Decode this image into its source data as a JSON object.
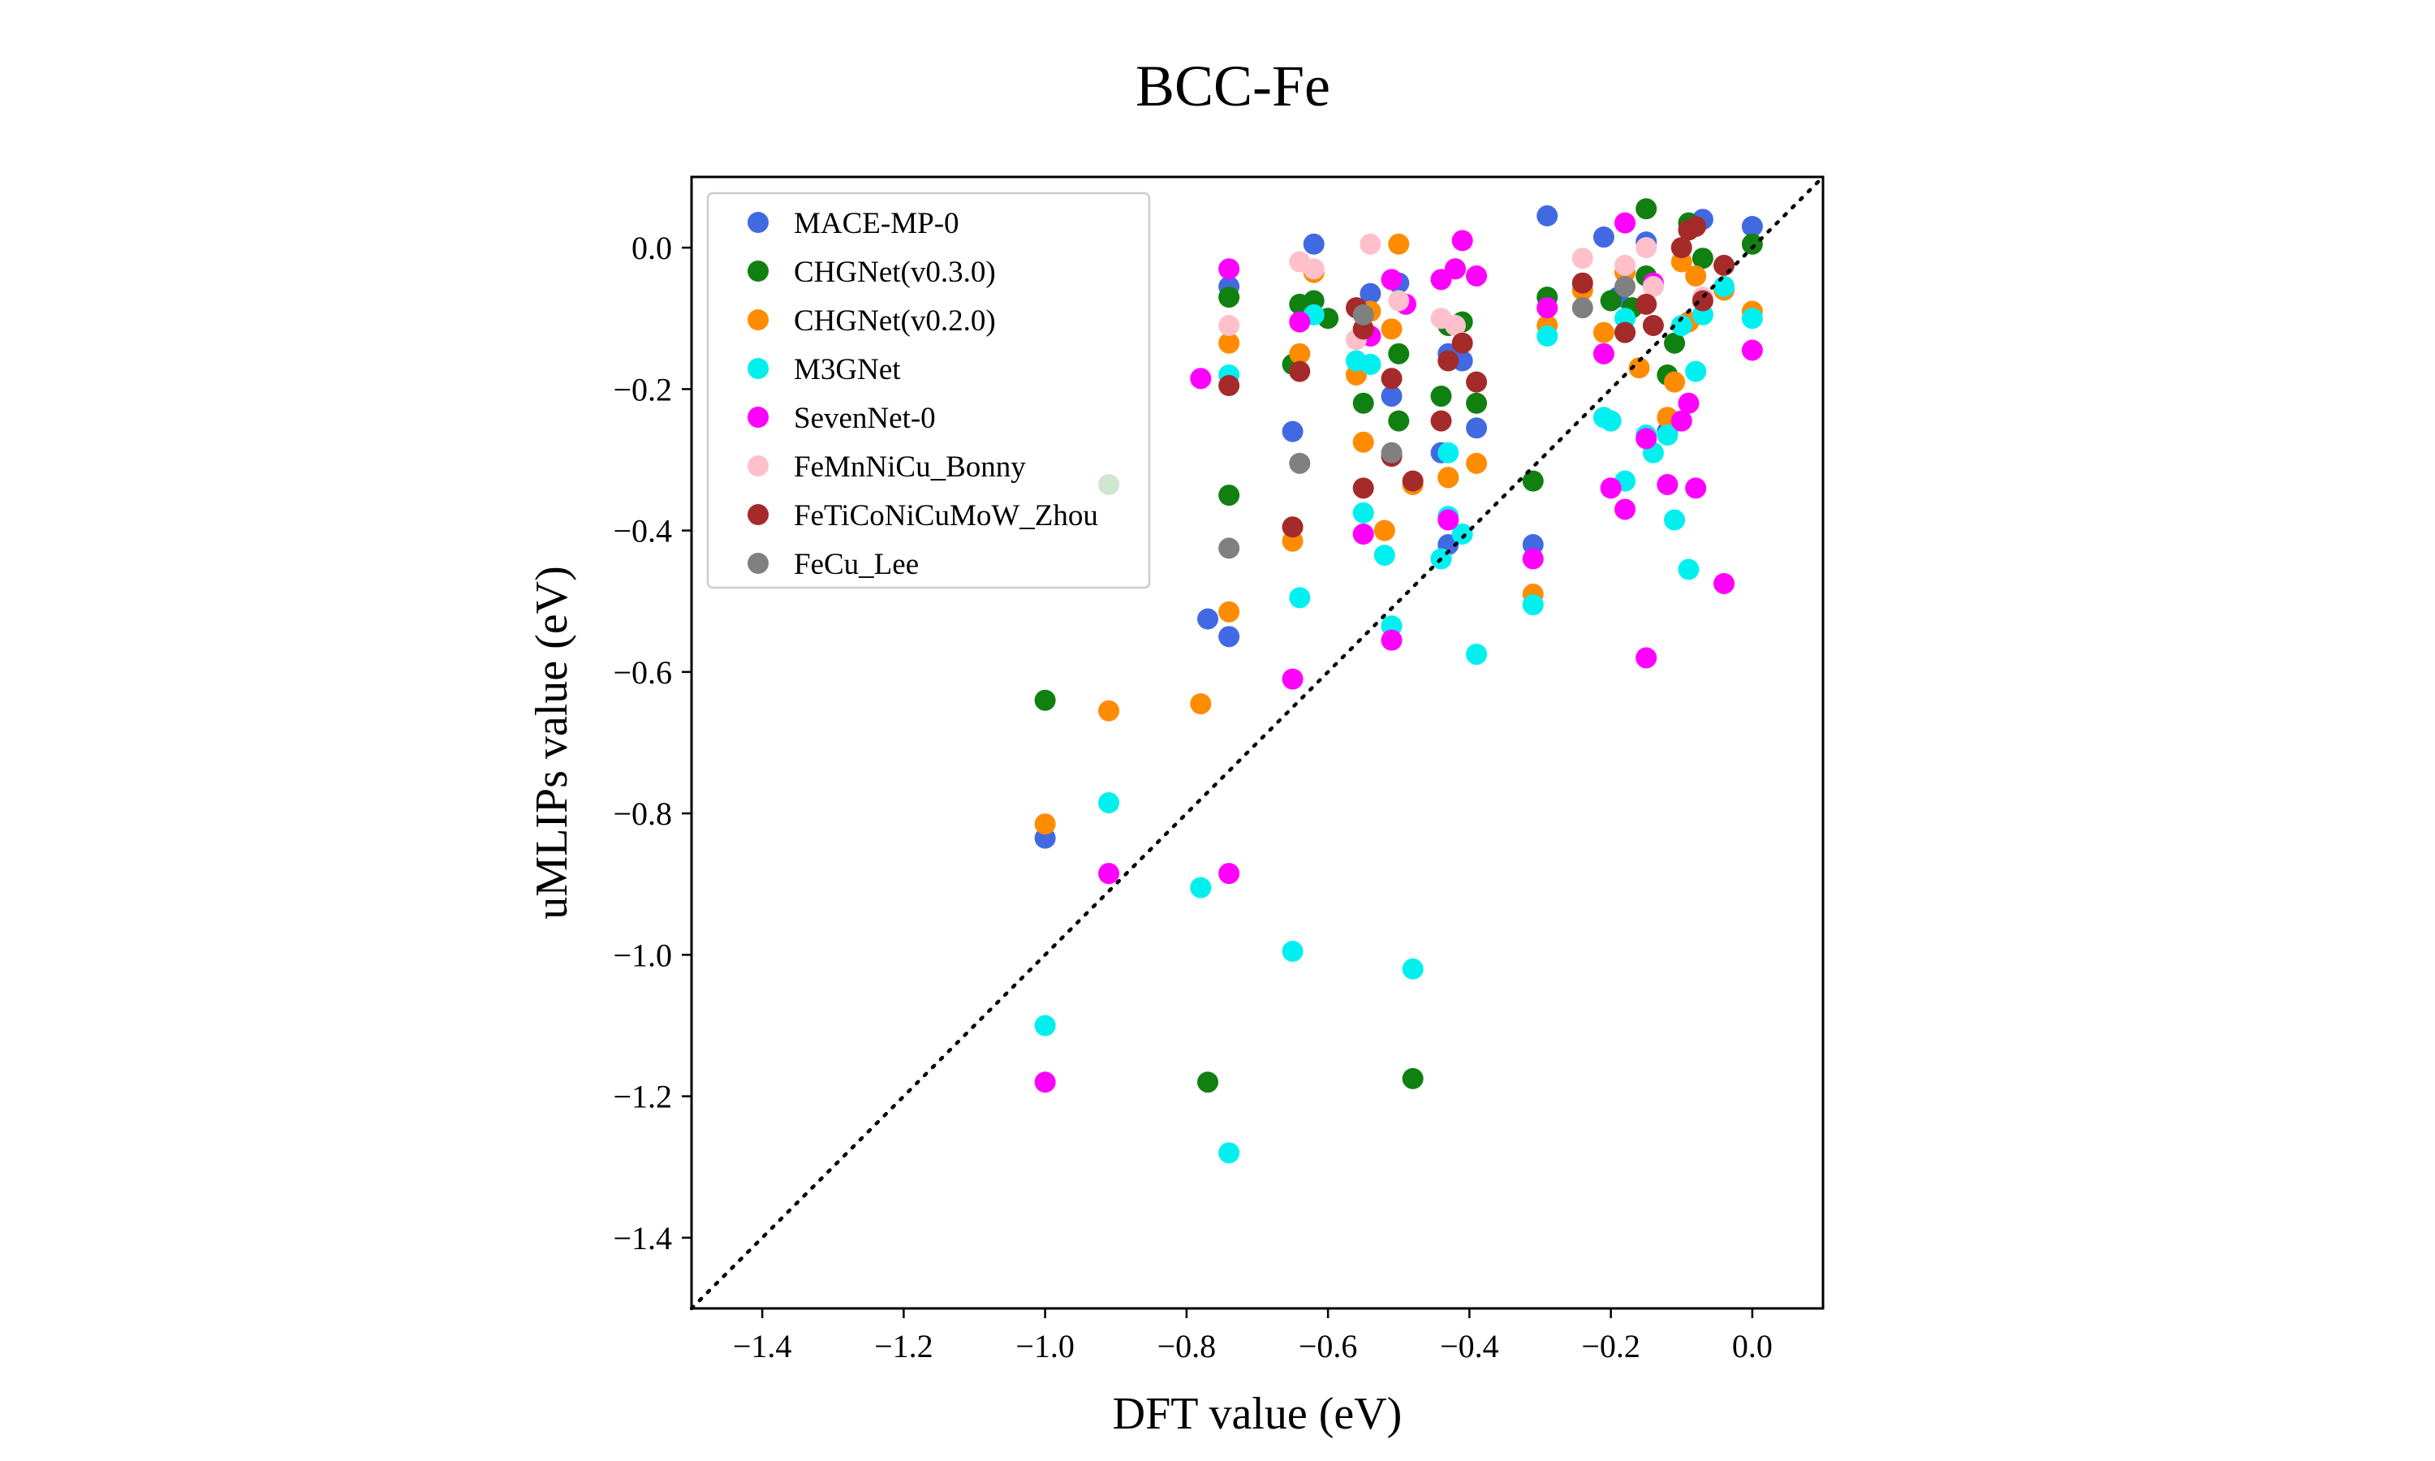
{
  "chart_data": {
    "type": "scatter",
    "title": "BCC-Fe",
    "xlabel": "DFT value (eV)",
    "ylabel": "uMLIPs value (eV)",
    "xlim": [
      -1.5,
      0.1
    ],
    "ylim": [
      -1.5,
      0.1
    ],
    "xticks": [
      -1.4,
      -1.2,
      -1.0,
      -0.8,
      -0.6,
      -0.4,
      -0.2,
      0.0
    ],
    "yticks": [
      0.0,
      -0.2,
      -0.4,
      -0.6,
      -0.8,
      -1.0,
      -1.2,
      -1.4
    ],
    "xtick_labels": [
      "−1.4",
      "−1.2",
      "−1.0",
      "−0.8",
      "−0.6",
      "−0.4",
      "−0.2",
      "0.0"
    ],
    "ytick_labels": [
      "0.0",
      "−0.2",
      "−0.4",
      "−0.6",
      "−0.8",
      "−1.0",
      "−1.2",
      "−1.4"
    ],
    "reference_line": "y = x, dotted black",
    "grid": false,
    "legend_position": "top-left",
    "series": [
      {
        "name": "MACE-MP-0",
        "color": "#4169e1",
        "points": [
          [
            -1.0,
            -0.835
          ],
          [
            -0.77,
            -0.525
          ],
          [
            -0.74,
            -0.055
          ],
          [
            -0.74,
            -0.55
          ],
          [
            -0.65,
            -0.26
          ],
          [
            -0.62,
            0.005
          ],
          [
            -0.54,
            -0.065
          ],
          [
            -0.51,
            -0.21
          ],
          [
            -0.5,
            -0.05
          ],
          [
            -0.44,
            -0.29
          ],
          [
            -0.43,
            -0.15
          ],
          [
            -0.43,
            -0.42
          ],
          [
            -0.41,
            -0.16
          ],
          [
            -0.39,
            -0.255
          ],
          [
            -0.31,
            -0.42
          ],
          [
            -0.29,
            0.045
          ],
          [
            -0.21,
            0.015
          ],
          [
            -0.19,
            -0.07
          ],
          [
            -0.18,
            -0.12
          ],
          [
            -0.15,
            0.008
          ],
          [
            -0.12,
            -0.26
          ],
          [
            -0.07,
            0.04
          ],
          [
            0.0,
            0.03
          ]
        ]
      },
      {
        "name": "CHGNet(v0.3.0)",
        "color": "#108010",
        "points": [
          [
            -1.0,
            -0.64
          ],
          [
            -0.91,
            -0.335
          ],
          [
            -0.77,
            -1.18
          ],
          [
            -0.74,
            -0.07
          ],
          [
            -0.74,
            -0.35
          ],
          [
            -0.65,
            -0.165
          ],
          [
            -0.64,
            -0.08
          ],
          [
            -0.62,
            -0.075
          ],
          [
            -0.6,
            -0.1
          ],
          [
            -0.55,
            -0.22
          ],
          [
            -0.5,
            -0.245
          ],
          [
            -0.5,
            -0.15
          ],
          [
            -0.48,
            -1.175
          ],
          [
            -0.44,
            -0.21
          ],
          [
            -0.43,
            -0.325
          ],
          [
            -0.43,
            -0.11
          ],
          [
            -0.41,
            -0.105
          ],
          [
            -0.39,
            -0.22
          ],
          [
            -0.31,
            -0.33
          ],
          [
            -0.29,
            -0.07
          ],
          [
            -0.2,
            -0.075
          ],
          [
            -0.17,
            -0.085
          ],
          [
            -0.15,
            0.055
          ],
          [
            -0.15,
            -0.04
          ],
          [
            -0.12,
            -0.18
          ],
          [
            -0.11,
            -0.135
          ],
          [
            -0.09,
            0.035
          ],
          [
            -0.07,
            -0.015
          ],
          [
            0.0,
            0.005
          ]
        ]
      },
      {
        "name": "CHGNet(v0.2.0)",
        "color": "#ff8c00",
        "points": [
          [
            -1.0,
            -0.815
          ],
          [
            -0.91,
            -0.655
          ],
          [
            -0.78,
            -0.645
          ],
          [
            -0.74,
            -0.515
          ],
          [
            -0.74,
            -0.135
          ],
          [
            -0.65,
            -0.415
          ],
          [
            -0.64,
            -0.15
          ],
          [
            -0.62,
            -0.035
          ],
          [
            -0.56,
            -0.18
          ],
          [
            -0.55,
            -0.275
          ],
          [
            -0.54,
            -0.09
          ],
          [
            -0.52,
            -0.4
          ],
          [
            -0.51,
            -0.115
          ],
          [
            -0.5,
            0.005
          ],
          [
            -0.48,
            -0.335
          ],
          [
            -0.43,
            -0.325
          ],
          [
            -0.42,
            -0.03
          ],
          [
            -0.39,
            -0.305
          ],
          [
            -0.31,
            -0.49
          ],
          [
            -0.29,
            -0.11
          ],
          [
            -0.24,
            -0.06
          ],
          [
            -0.21,
            -0.12
          ],
          [
            -0.2,
            -0.245
          ],
          [
            -0.18,
            -0.035
          ],
          [
            -0.16,
            -0.17
          ],
          [
            -0.12,
            -0.24
          ],
          [
            -0.11,
            -0.19
          ],
          [
            -0.1,
            -0.02
          ],
          [
            -0.09,
            -0.105
          ],
          [
            -0.08,
            -0.04
          ],
          [
            -0.04,
            -0.06
          ],
          [
            0.0,
            -0.09
          ]
        ]
      },
      {
        "name": "M3GNet",
        "color": "#00f0f0",
        "points": [
          [
            -1.0,
            -1.1
          ],
          [
            -0.91,
            -0.785
          ],
          [
            -0.78,
            -0.905
          ],
          [
            -0.74,
            -0.18
          ],
          [
            -0.74,
            -1.28
          ],
          [
            -0.65,
            -0.995
          ],
          [
            -0.64,
            -0.495
          ],
          [
            -0.62,
            -0.095
          ],
          [
            -0.56,
            -0.16
          ],
          [
            -0.55,
            -0.375
          ],
          [
            -0.54,
            -0.165
          ],
          [
            -0.52,
            -0.435
          ],
          [
            -0.51,
            -0.535
          ],
          [
            -0.48,
            -1.02
          ],
          [
            -0.44,
            -0.44
          ],
          [
            -0.43,
            -0.38
          ],
          [
            -0.43,
            -0.29
          ],
          [
            -0.41,
            -0.405
          ],
          [
            -0.39,
            -0.575
          ],
          [
            -0.31,
            -0.505
          ],
          [
            -0.29,
            -0.125
          ],
          [
            -0.21,
            -0.24
          ],
          [
            -0.2,
            -0.245
          ],
          [
            -0.18,
            -0.33
          ],
          [
            -0.18,
            -0.1
          ],
          [
            -0.15,
            -0.265
          ],
          [
            -0.14,
            -0.29
          ],
          [
            -0.12,
            -0.265
          ],
          [
            -0.11,
            -0.385
          ],
          [
            -0.1,
            -0.11
          ],
          [
            -0.09,
            -0.455
          ],
          [
            -0.08,
            -0.175
          ],
          [
            -0.07,
            -0.095
          ],
          [
            -0.04,
            -0.055
          ],
          [
            0.0,
            -0.1
          ]
        ]
      },
      {
        "name": "SevenNet-0",
        "color": "#ff00ff",
        "points": [
          [
            -1.0,
            -1.18
          ],
          [
            -0.91,
            -0.885
          ],
          [
            -0.78,
            -0.185
          ],
          [
            -0.74,
            -0.03
          ],
          [
            -0.74,
            -0.885
          ],
          [
            -0.65,
            -0.61
          ],
          [
            -0.64,
            -0.105
          ],
          [
            -0.55,
            -0.405
          ],
          [
            -0.54,
            -0.125
          ],
          [
            -0.51,
            -0.555
          ],
          [
            -0.51,
            -0.045
          ],
          [
            -0.49,
            -0.08
          ],
          [
            -0.44,
            -0.045
          ],
          [
            -0.43,
            -0.385
          ],
          [
            -0.42,
            -0.03
          ],
          [
            -0.41,
            0.01
          ],
          [
            -0.39,
            -0.04
          ],
          [
            -0.31,
            -0.44
          ],
          [
            -0.29,
            -0.085
          ],
          [
            -0.21,
            -0.15
          ],
          [
            -0.2,
            -0.34
          ],
          [
            -0.18,
            -0.37
          ],
          [
            -0.18,
            0.035
          ],
          [
            -0.15,
            -0.58
          ],
          [
            -0.15,
            -0.27
          ],
          [
            -0.14,
            -0.05
          ],
          [
            -0.12,
            -0.335
          ],
          [
            -0.1,
            -0.245
          ],
          [
            -0.09,
            -0.22
          ],
          [
            -0.08,
            -0.34
          ],
          [
            -0.04,
            -0.475
          ],
          [
            0.0,
            -0.145
          ]
        ]
      },
      {
        "name": "FeMnNiCu_Bonny",
        "color": "#ffc0cb",
        "points": [
          [
            -0.74,
            -0.11
          ],
          [
            -0.64,
            -0.02
          ],
          [
            -0.62,
            -0.03
          ],
          [
            -0.56,
            -0.13
          ],
          [
            -0.54,
            0.005
          ],
          [
            -0.5,
            -0.075
          ],
          [
            -0.44,
            -0.1
          ],
          [
            -0.42,
            -0.11
          ],
          [
            -0.24,
            -0.015
          ],
          [
            -0.18,
            -0.025
          ],
          [
            -0.15,
            0.0
          ],
          [
            -0.14,
            -0.055
          ],
          [
            -0.07,
            -0.07
          ]
        ]
      },
      {
        "name": "FeTiCoNiCuMoW_Zhou",
        "color": "#a52a2a",
        "points": [
          [
            -0.74,
            -0.195
          ],
          [
            -0.65,
            -0.395
          ],
          [
            -0.64,
            -0.175
          ],
          [
            -0.56,
            -0.085
          ],
          [
            -0.55,
            -0.34
          ],
          [
            -0.55,
            -0.115
          ],
          [
            -0.51,
            -0.185
          ],
          [
            -0.51,
            -0.295
          ],
          [
            -0.48,
            -0.33
          ],
          [
            -0.44,
            -0.245
          ],
          [
            -0.43,
            -0.16
          ],
          [
            -0.41,
            -0.135
          ],
          [
            -0.39,
            -0.19
          ],
          [
            -0.24,
            -0.05
          ],
          [
            -0.18,
            -0.12
          ],
          [
            -0.15,
            -0.08
          ],
          [
            -0.14,
            -0.11
          ],
          [
            -0.1,
            0.0
          ],
          [
            -0.09,
            0.025
          ],
          [
            -0.08,
            0.03
          ],
          [
            -0.04,
            -0.025
          ],
          [
            -0.07,
            -0.075
          ]
        ]
      },
      {
        "name": "FeCu_Lee",
        "color": "#808080",
        "points": [
          [
            -0.74,
            -0.425
          ],
          [
            -0.64,
            -0.305
          ],
          [
            -0.55,
            -0.095
          ],
          [
            -0.51,
            -0.29
          ],
          [
            -0.24,
            -0.085
          ],
          [
            -0.18,
            -0.055
          ]
        ]
      }
    ]
  }
}
